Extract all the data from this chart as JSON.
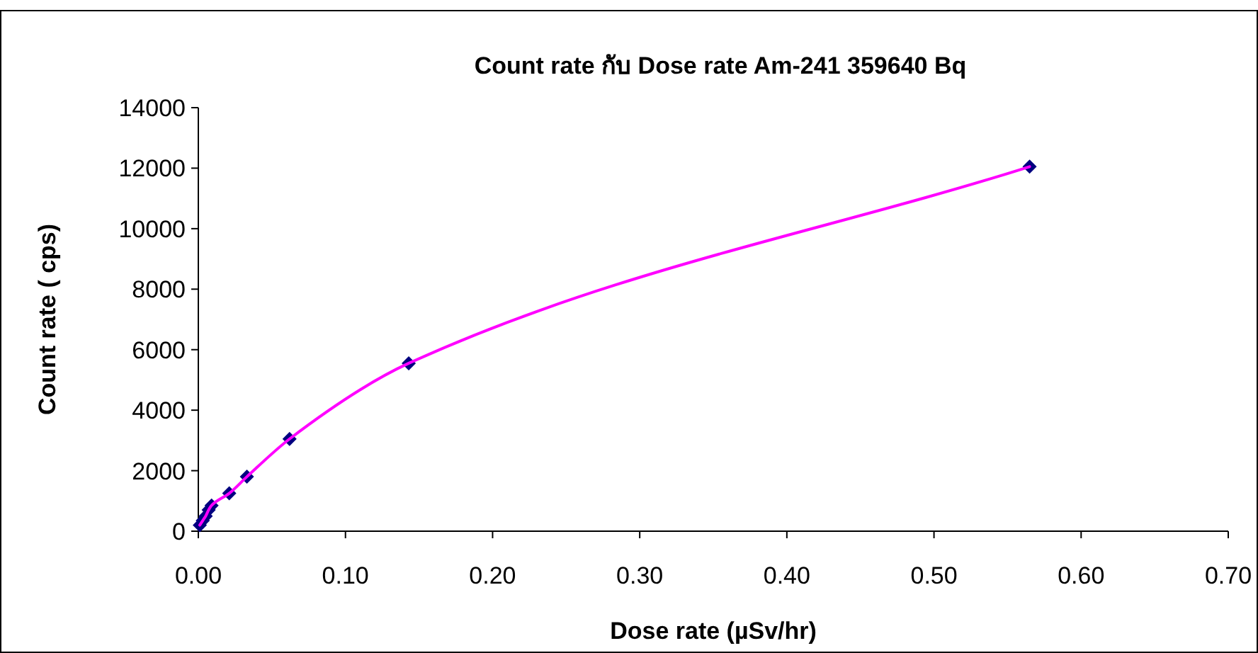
{
  "chart_data": {
    "type": "scatter",
    "title": "Count rate กับ Dose rate  Am-241 359640 Bq",
    "xlabel": "Dose rate (µSv/hr)",
    "ylabel": "Count rate  ( cps)",
    "x": [
      0.001,
      0.003,
      0.005,
      0.007,
      0.009,
      0.021,
      0.033,
      0.062,
      0.143,
      0.565
    ],
    "series": [
      {
        "color": "#000080",
        "marker": "diamond",
        "values": [
          200,
          350,
          500,
          700,
          850,
          1250,
          1800,
          3050,
          5550,
          12050
        ]
      },
      {
        "type": "line",
        "color": "#ff00ff",
        "marker": "none",
        "values": [
          200,
          350,
          500,
          700,
          850,
          1250,
          1800,
          3050,
          5550,
          12050
        ]
      }
    ],
    "xlim": [
      0,
      0.7
    ],
    "xticks": [
      {
        "value": 0,
        "label": "0.00"
      },
      {
        "value": 0.1,
        "label": "0.10"
      },
      {
        "value": 0.2,
        "label": "0.20"
      },
      {
        "value": 0.3,
        "label": "0.30"
      },
      {
        "value": 0.4,
        "label": "0.40"
      },
      {
        "value": 0.5,
        "label": "0.50"
      },
      {
        "value": 0.6,
        "label": "0.60"
      },
      {
        "value": 0.7,
        "label": "0.70"
      }
    ],
    "ylim": [
      0,
      14000
    ],
    "yticks": [
      0,
      2000,
      4000,
      6000,
      8000,
      10000,
      12000,
      14000
    ],
    "grid": false
  }
}
